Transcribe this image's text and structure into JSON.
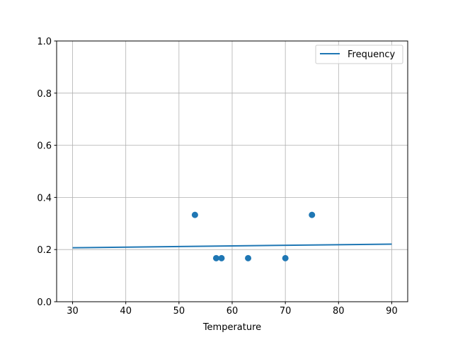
{
  "chart_data": {
    "type": "scatter",
    "title": "",
    "xlabel": "Temperature",
    "ylabel": "",
    "xlim": [
      27,
      93
    ],
    "ylim": [
      0,
      1.0
    ],
    "xticks": [
      30,
      40,
      50,
      60,
      70,
      80,
      90
    ],
    "yticks": [
      0.0,
      0.2,
      0.4,
      0.6,
      0.8,
      1.0
    ],
    "xtick_labels": [
      "30",
      "40",
      "50",
      "60",
      "70",
      "80",
      "90"
    ],
    "ytick_labels": [
      "0.0",
      "0.2",
      "0.4",
      "0.6",
      "0.8",
      "1.0"
    ],
    "grid": true,
    "legend_placement": "top-right",
    "points": {
      "x": [
        53,
        57,
        58,
        63,
        70,
        75
      ],
      "y": [
        0.333,
        0.167,
        0.167,
        0.167,
        0.167,
        0.333
      ],
      "color": "#1f77b4"
    },
    "series": [
      {
        "name": "Frequency",
        "type": "line",
        "x": [
          30,
          90
        ],
        "y": [
          0.207,
          0.221
        ],
        "color": "#1f77b4"
      }
    ]
  }
}
